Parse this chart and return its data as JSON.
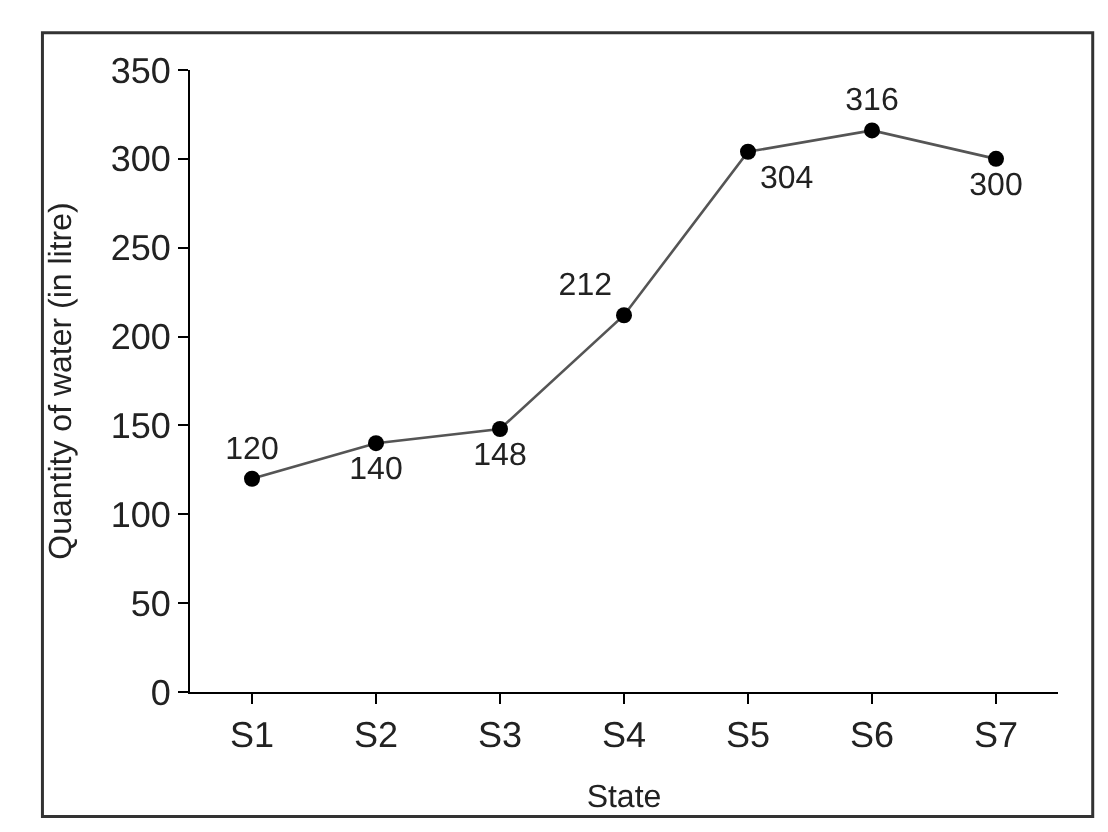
{
  "chart_data": {
    "type": "line",
    "xlabel": "State",
    "ylabel": "Quantity of water (in litre)",
    "categories": [
      "S1",
      "S2",
      "S3",
      "S4",
      "S5",
      "S6",
      "S7"
    ],
    "series": [
      {
        "color": "#000000",
        "values": [
          120,
          140,
          148,
          212,
          304,
          316,
          300
        ]
      }
    ],
    "ylim": [
      0,
      350
    ],
    "yticks": [
      0,
      50,
      100,
      150,
      200,
      250,
      300,
      350
    ],
    "marker": "circle",
    "line_style": "solid",
    "data_labels": true
  }
}
